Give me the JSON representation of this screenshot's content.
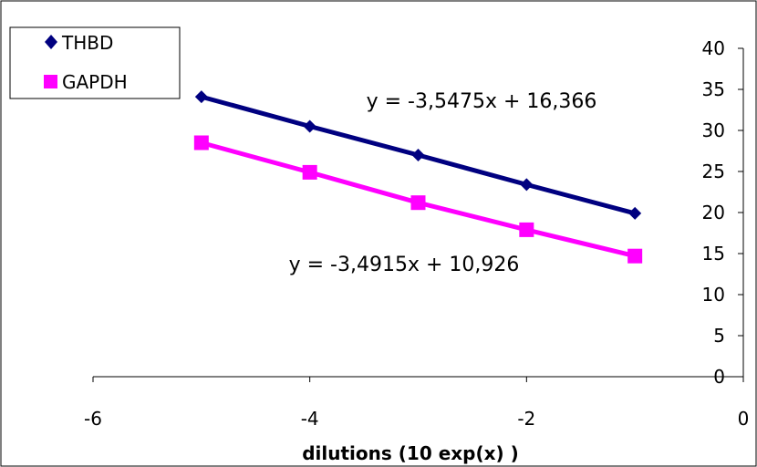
{
  "chart_data": {
    "type": "line",
    "title": "",
    "xlabel": "dilutions (10 exp(x) )",
    "ylabel": "",
    "xlim": [
      -6,
      0
    ],
    "ylim": [
      0,
      40
    ],
    "x_ticks": [
      "-6",
      "-4",
      "-2",
      "0"
    ],
    "y_ticks": [
      "0",
      "5",
      "10",
      "15",
      "20",
      "25",
      "30",
      "35",
      "40"
    ],
    "grid": false,
    "legend_position": "top-left",
    "series": [
      {
        "name": "THBD",
        "color": "#000080",
        "marker": "diamond",
        "x": [
          -5,
          -4,
          -3,
          -2,
          -1
        ],
        "y": [
          34.1,
          30.5,
          27.0,
          23.4,
          19.9
        ],
        "trendline_label": "y = -3,5475x + 16,366"
      },
      {
        "name": "GAPDH",
        "color": "#FF00FF",
        "marker": "square",
        "x": [
          -5,
          -4,
          -3,
          -2,
          -1
        ],
        "y": [
          28.5,
          24.9,
          21.2,
          17.9,
          14.7
        ],
        "trendline_label": "y = -3,4915x + 10,926"
      }
    ]
  }
}
